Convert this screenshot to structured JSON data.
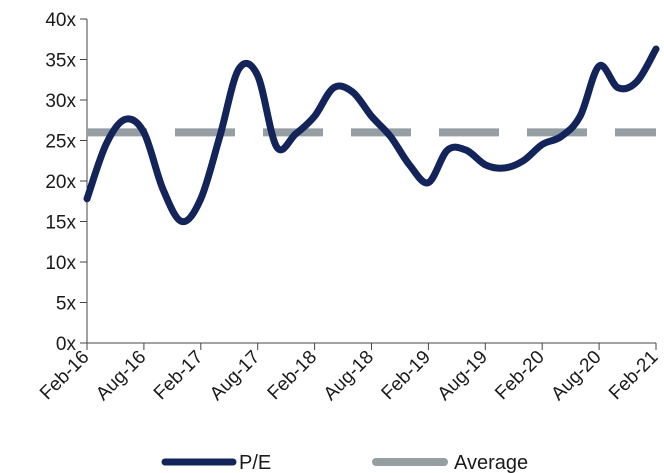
{
  "chart_data": {
    "type": "line",
    "title": "",
    "xlabel": "",
    "ylabel": "",
    "ylim": [
      0,
      40
    ],
    "y_ticks": [
      "0x",
      "5x",
      "10x",
      "15x",
      "20x",
      "25x",
      "30x",
      "35x",
      "40x"
    ],
    "y_tick_values": [
      0,
      5,
      10,
      15,
      20,
      25,
      30,
      35,
      40
    ],
    "x_ticks": [
      "Feb-16",
      "Aug-16",
      "Feb-17",
      "Aug-17",
      "Feb-18",
      "Aug-18",
      "Feb-19",
      "Aug-19",
      "Feb-20",
      "Aug-20",
      "Feb-21"
    ],
    "grid": false,
    "legend_position": "bottom",
    "series": [
      {
        "name": "P/E",
        "color": "#13245a",
        "style": "solid",
        "x": [
          "Feb-16",
          "Apr-16",
          "Jun-16",
          "Aug-16",
          "Oct-16",
          "Dec-16",
          "Feb-17",
          "Apr-17",
          "Jun-17",
          "Aug-17",
          "Oct-17",
          "Dec-17",
          "Feb-18",
          "Apr-18",
          "Jun-18",
          "Aug-18",
          "Oct-18",
          "Dec-18",
          "Feb-19",
          "Apr-19",
          "Jun-19",
          "Aug-19",
          "Oct-19",
          "Dec-19",
          "Feb-20",
          "Apr-20",
          "Jun-20",
          "Aug-20",
          "Oct-20",
          "Dec-20",
          "Feb-21"
        ],
        "values": [
          17.8,
          24.5,
          27.6,
          26.0,
          19.0,
          15.0,
          17.8,
          25.5,
          33.8,
          33.0,
          24.2,
          25.8,
          28.0,
          31.5,
          31.0,
          28.0,
          25.5,
          22.0,
          19.8,
          23.8,
          23.8,
          22.0,
          21.6,
          22.5,
          24.5,
          25.5,
          28.0,
          34.2,
          31.5,
          32.3,
          36.3
        ]
      },
      {
        "name": "Average",
        "color": "#949ea3",
        "style": "dashed",
        "x": [
          "Feb-16",
          "Feb-21"
        ],
        "values": [
          26.0,
          26.0
        ]
      }
    ]
  }
}
